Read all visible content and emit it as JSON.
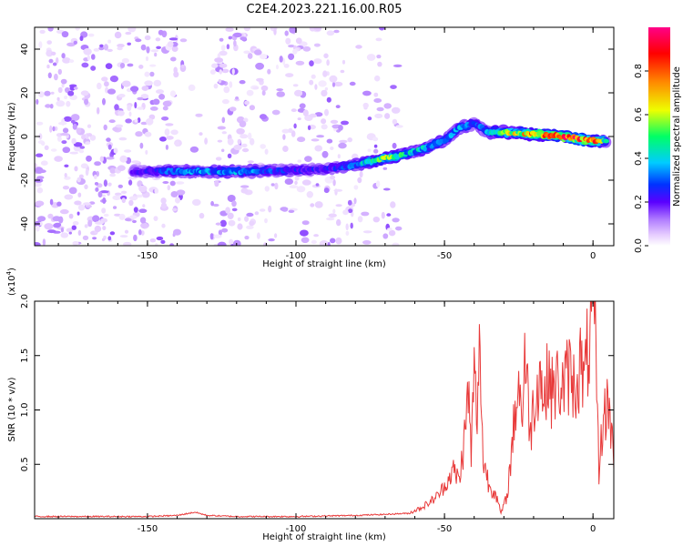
{
  "figure_title": "C2E4.2023.221.16.00.R05",
  "chart_data": [
    {
      "type": "heatmap",
      "title": "C2E4.2023.221.16.00.R05",
      "xlabel": "Height of straight line (km)",
      "ylabel": "Frequency (Hz)",
      "xlim": [
        -188,
        7
      ],
      "ylim": [
        -50,
        50
      ],
      "xticks": [
        -150,
        -100,
        -50,
        0
      ],
      "yticks": [
        -40,
        -20,
        0,
        20,
        40
      ],
      "colorbar": {
        "label": "Normalized spectral amplitude",
        "range": [
          0,
          1
        ],
        "ticks": [
          0.0,
          0.2,
          0.4,
          0.6,
          0.8
        ],
        "colormap": [
          "#ffffff",
          "#e6ccff",
          "#b07cff",
          "#5a00ff",
          "#0032ff",
          "#00ccff",
          "#00ff66",
          "#eeff00",
          "#ff8800",
          "#ff0000",
          "#ff0088"
        ]
      },
      "ridge": {
        "description": "dominant frequency trace",
        "x": [
          -155,
          -140,
          -120,
          -100,
          -90,
          -80,
          -70,
          -60,
          -50,
          -45,
          -40,
          -35,
          -30,
          -20,
          -10,
          0,
          5
        ],
        "frequency": [
          -16,
          -16,
          -16,
          -15.5,
          -15,
          -13,
          -10,
          -7,
          -2,
          4,
          6,
          2,
          2,
          1,
          0,
          -2,
          -2
        ],
        "peak_amplitude": [
          0.3,
          0.5,
          0.5,
          0.4,
          0.35,
          0.5,
          0.7,
          0.55,
          0.55,
          0.5,
          0.45,
          0.5,
          0.7,
          0.9,
          0.95,
          0.95,
          0.5
        ]
      }
    },
    {
      "type": "line",
      "xlabel": "Height of straight line (km)",
      "ylabel": "SNR (10 * v/v)",
      "y_multiplier_label": "(x10",
      "y_multiplier_exp": "4",
      "y_multiplier_close": ")",
      "xlim": [
        -188,
        7
      ],
      "ylim": [
        0,
        2.0
      ],
      "xticks": [
        -150,
        -100,
        -50,
        0
      ],
      "yticks": [
        0.5,
        1.0,
        1.5,
        2.0
      ],
      "series": [
        {
          "name": "SNR",
          "color": "#e83a3a",
          "x": [
            -188,
            -170,
            -150,
            -140,
            -136,
            -134,
            -130,
            -120,
            -100,
            -80,
            -70,
            -62,
            -58,
            -55,
            -52,
            -50,
            -47,
            -45,
            -43,
            -42,
            -41,
            -40,
            -39,
            -38,
            -37,
            -36,
            -35,
            -33,
            -31,
            -29,
            -28,
            -27,
            -26,
            -25,
            -24,
            -23,
            -21,
            -20,
            -18,
            -16,
            -15,
            -14,
            -12,
            -10,
            -8,
            -6,
            -4,
            -3,
            -2,
            -1,
            0,
            1,
            2,
            3,
            5,
            7
          ],
          "values": [
            0.02,
            0.02,
            0.02,
            0.03,
            0.05,
            0.06,
            0.03,
            0.02,
            0.02,
            0.03,
            0.04,
            0.05,
            0.1,
            0.15,
            0.22,
            0.3,
            0.45,
            0.35,
            0.8,
            1.2,
            0.6,
            1.35,
            0.9,
            1.65,
            0.5,
            0.45,
            0.3,
            0.25,
            0.05,
            0.2,
            0.45,
            0.75,
            1.05,
            1.3,
            0.9,
            1.5,
            0.8,
            1.05,
            1.35,
            1.05,
            1.45,
            1.15,
            1.25,
            1.2,
            1.35,
            1.2,
            1.45,
            1.2,
            1.5,
            1.6,
            2.0,
            1.5,
            0.4,
            0.8,
            1.1,
            0.6
          ]
        }
      ]
    }
  ]
}
